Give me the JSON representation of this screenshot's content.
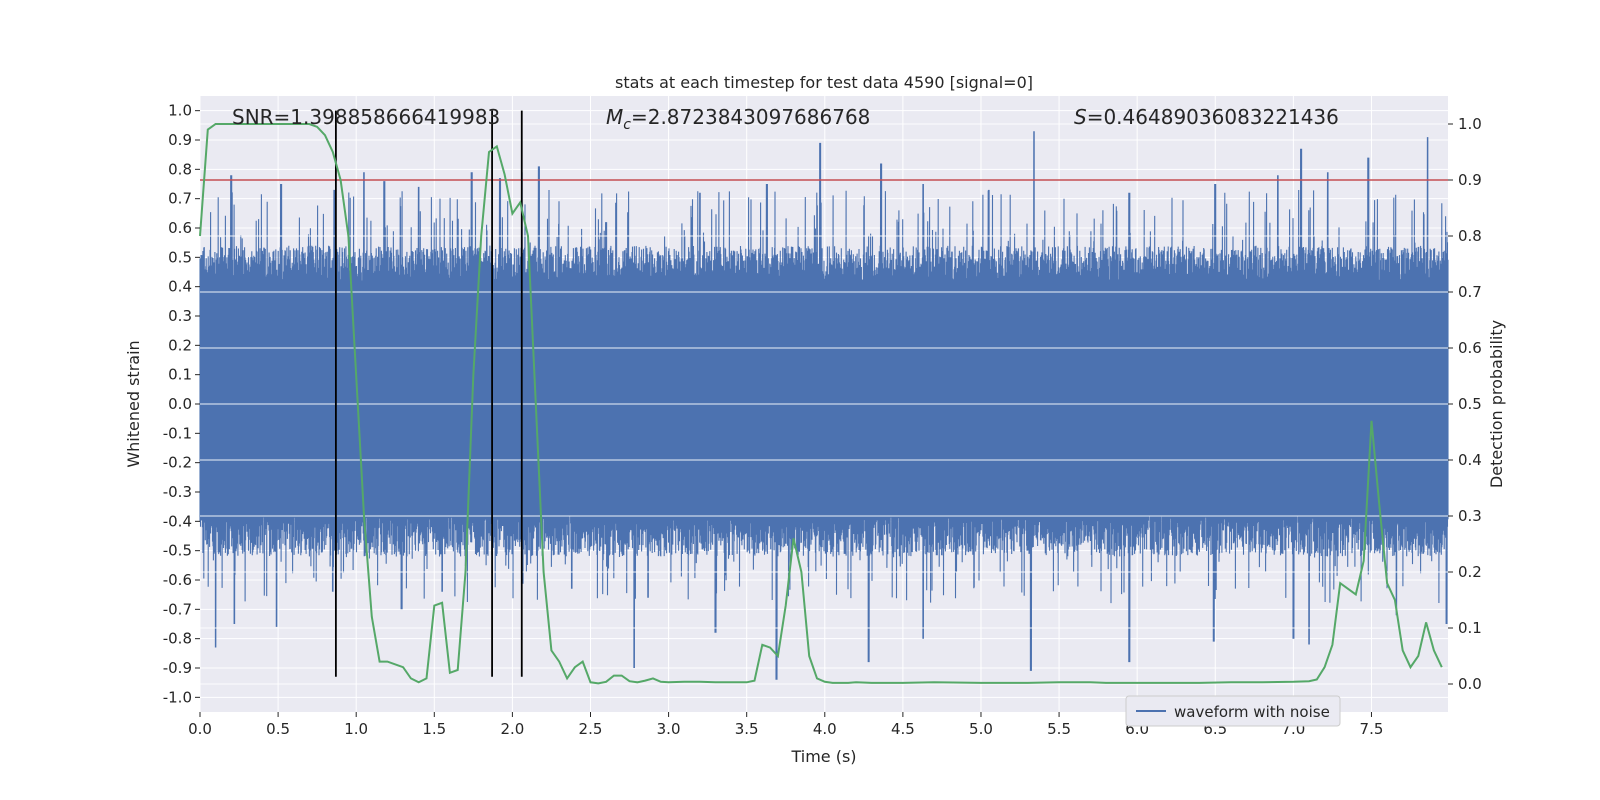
{
  "chart_data": {
    "type": "line",
    "title": "stats at each timestep for test data 4590 [signal=0]",
    "xlabel": "Time (s)",
    "ylabel": "Whitened strain",
    "y2label": "Detection probability",
    "xlim": [
      0.0,
      7.99
    ],
    "ylim": [
      -1.05,
      1.05
    ],
    "y2lim": [
      -0.05,
      1.05
    ],
    "xticks": [
      "0.0",
      "0.5",
      "1.0",
      "1.5",
      "2.0",
      "2.5",
      "3.0",
      "3.5",
      "4.0",
      "4.5",
      "5.0",
      "5.5",
      "6.0",
      "6.5",
      "7.0",
      "7.5"
    ],
    "yticks": [
      "-1.0",
      "-0.9",
      "-0.8",
      "-0.7",
      "-0.6",
      "-0.5",
      "-0.4",
      "-0.3",
      "-0.2",
      "-0.1",
      "0.0",
      "0.1",
      "0.2",
      "0.3",
      "0.4",
      "0.5",
      "0.6",
      "0.7",
      "0.8",
      "0.9",
      "1.0"
    ],
    "y2ticks": [
      "0.0",
      "0.1",
      "0.2",
      "0.3",
      "0.4",
      "0.5",
      "0.6",
      "0.7",
      "0.8",
      "0.9",
      "1.0"
    ],
    "grid": true,
    "legend": {
      "location": "lower-right",
      "entries": [
        "waveform with noise"
      ]
    },
    "annotations": {
      "snr": "SNR=1.398858666419983",
      "mc_symbol": "M",
      "mc_sub": "c",
      "mc_value": "=2.8723843097686768",
      "s_symbol": "S",
      "s_value": "=0.46489036083221436"
    },
    "colors": {
      "waveform": "#4c72b0",
      "probability": "#55a868",
      "threshold": "#c44e52",
      "markers": "#000000",
      "background": "#eaeaf2",
      "grid": "#ffffff"
    },
    "threshold": 0.9,
    "markers_x": [
      0.87,
      1.87,
      2.06
    ],
    "waveform": {
      "description_values": "noise between roughly -0.6 and 0.6, dense",
      "peaks": [
        {
          "x": 0.2,
          "y": 0.78
        },
        {
          "x": 0.52,
          "y": 0.75
        },
        {
          "x": 0.86,
          "y": 0.73
        },
        {
          "x": 1.05,
          "y": 0.79
        },
        {
          "x": 1.18,
          "y": 0.76
        },
        {
          "x": 1.4,
          "y": 0.74
        },
        {
          "x": 1.74,
          "y": 0.79
        },
        {
          "x": 1.92,
          "y": 0.77
        },
        {
          "x": 2.06,
          "y": 0.79
        },
        {
          "x": 2.17,
          "y": 0.81
        },
        {
          "x": 2.6,
          "y": 0.62
        },
        {
          "x": 3.2,
          "y": 0.72
        },
        {
          "x": 3.63,
          "y": 0.75
        },
        {
          "x": 3.97,
          "y": 0.89
        },
        {
          "x": 4.36,
          "y": 0.82
        },
        {
          "x": 4.63,
          "y": 0.75
        },
        {
          "x": 5.05,
          "y": 0.73
        },
        {
          "x": 5.34,
          "y": 0.93
        },
        {
          "x": 5.95,
          "y": 0.72
        },
        {
          "x": 6.5,
          "y": 0.75
        },
        {
          "x": 6.9,
          "y": 0.78
        },
        {
          "x": 7.05,
          "y": 0.87
        },
        {
          "x": 7.22,
          "y": 0.79
        },
        {
          "x": 7.48,
          "y": 0.84
        },
        {
          "x": 7.86,
          "y": 0.91
        }
      ],
      "troughs": [
        {
          "x": 0.1,
          "y": -0.83
        },
        {
          "x": 0.22,
          "y": -0.75
        },
        {
          "x": 0.49,
          "y": -0.76
        },
        {
          "x": 0.85,
          "y": -0.64
        },
        {
          "x": 1.29,
          "y": -0.7
        },
        {
          "x": 1.55,
          "y": -0.64
        },
        {
          "x": 2.38,
          "y": -0.63
        },
        {
          "x": 2.78,
          "y": -0.9
        },
        {
          "x": 3.3,
          "y": -0.78
        },
        {
          "x": 3.69,
          "y": -0.94
        },
        {
          "x": 4.28,
          "y": -0.88
        },
        {
          "x": 4.63,
          "y": -0.8
        },
        {
          "x": 5.32,
          "y": -0.91
        },
        {
          "x": 5.95,
          "y": -0.88
        },
        {
          "x": 6.49,
          "y": -0.81
        },
        {
          "x": 7.0,
          "y": -0.8
        },
        {
          "x": 7.1,
          "y": -0.82
        },
        {
          "x": 7.66,
          "y": -0.72
        },
        {
          "x": 7.98,
          "y": -0.75
        }
      ]
    },
    "probability": {
      "x": [
        0.0,
        0.05,
        0.1,
        0.2,
        0.3,
        0.4,
        0.5,
        0.6,
        0.65,
        0.7,
        0.75,
        0.8,
        0.85,
        0.9,
        0.95,
        1.0,
        1.05,
        1.1,
        1.15,
        1.2,
        1.3,
        1.35,
        1.4,
        1.45,
        1.5,
        1.55,
        1.6,
        1.65,
        1.7,
        1.75,
        1.8,
        1.85,
        1.9,
        1.95,
        2.0,
        2.05,
        2.1,
        2.15,
        2.2,
        2.25,
        2.3,
        2.35,
        2.4,
        2.45,
        2.5,
        2.55,
        2.6,
        2.65,
        2.7,
        2.75,
        2.8,
        2.85,
        2.9,
        2.95,
        3.0,
        3.1,
        3.2,
        3.3,
        3.4,
        3.5,
        3.55,
        3.6,
        3.65,
        3.7,
        3.75,
        3.8,
        3.85,
        3.9,
        3.95,
        4.0,
        4.05,
        4.1,
        4.15,
        4.2,
        4.3,
        4.5,
        4.7,
        5.0,
        5.3,
        5.5,
        5.7,
        5.8,
        6.0,
        6.2,
        6.4,
        6.6,
        6.8,
        7.0,
        7.1,
        7.15,
        7.2,
        7.25,
        7.3,
        7.35,
        7.4,
        7.45,
        7.5,
        7.55,
        7.6,
        7.65,
        7.7,
        7.75,
        7.8,
        7.85,
        7.9,
        7.95
      ],
      "y": [
        0.8,
        0.99,
        1.0,
        1.0,
        1.0,
        1.0,
        1.0,
        1.0,
        1.0,
        1.0,
        0.995,
        0.98,
        0.95,
        0.9,
        0.8,
        0.55,
        0.3,
        0.12,
        0.04,
        0.04,
        0.03,
        0.01,
        0.003,
        0.01,
        0.14,
        0.145,
        0.02,
        0.025,
        0.2,
        0.55,
        0.8,
        0.95,
        0.96,
        0.91,
        0.84,
        0.86,
        0.8,
        0.5,
        0.2,
        0.06,
        0.04,
        0.01,
        0.03,
        0.04,
        0.003,
        0.001,
        0.004,
        0.015,
        0.015,
        0.005,
        0.003,
        0.006,
        0.01,
        0.004,
        0.003,
        0.004,
        0.004,
        0.003,
        0.003,
        0.003,
        0.006,
        0.07,
        0.065,
        0.05,
        0.14,
        0.26,
        0.2,
        0.05,
        0.01,
        0.004,
        0.002,
        0.002,
        0.002,
        0.003,
        0.002,
        0.002,
        0.003,
        0.002,
        0.002,
        0.003,
        0.003,
        0.002,
        0.002,
        0.002,
        0.002,
        0.003,
        0.003,
        0.004,
        0.005,
        0.008,
        0.03,
        0.07,
        0.18,
        0.17,
        0.16,
        0.22,
        0.47,
        0.32,
        0.18,
        0.15,
        0.06,
        0.03,
        0.05,
        0.11,
        0.06,
        0.03
      ]
    }
  }
}
